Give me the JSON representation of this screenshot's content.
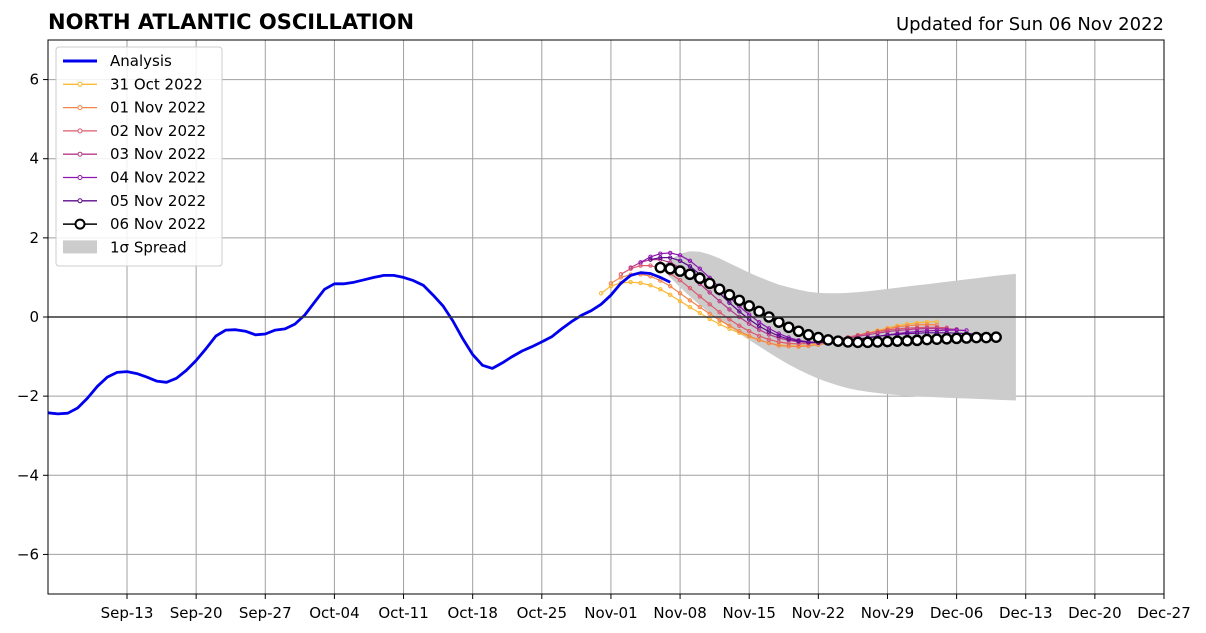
{
  "header": {
    "title": "NORTH ATLANTIC OSCILLATION",
    "updated": "Updated for Sun 06 Nov 2022"
  },
  "chart_data": {
    "type": "line",
    "title": "NORTH ATLANTIC OSCILLATION",
    "xlabel": "",
    "ylabel": "",
    "x_type": "date",
    "xlim": [
      "2022-09-05",
      "2022-12-27"
    ],
    "ylim": [
      -7,
      7
    ],
    "grid": true,
    "legend_position": "top-left",
    "x_ticks": [
      {
        "date": "2022-09-13",
        "label": "Sep-13"
      },
      {
        "date": "2022-09-20",
        "label": "Sep-20"
      },
      {
        "date": "2022-09-27",
        "label": "Sep-27"
      },
      {
        "date": "2022-10-04",
        "label": "Oct-04"
      },
      {
        "date": "2022-10-11",
        "label": "Oct-11"
      },
      {
        "date": "2022-10-18",
        "label": "Oct-18"
      },
      {
        "date": "2022-10-25",
        "label": "Oct-25"
      },
      {
        "date": "2022-11-01",
        "label": "Nov-01"
      },
      {
        "date": "2022-11-08",
        "label": "Nov-08"
      },
      {
        "date": "2022-11-15",
        "label": "Nov-15"
      },
      {
        "date": "2022-11-22",
        "label": "Nov-22"
      },
      {
        "date": "2022-11-29",
        "label": "Nov-29"
      },
      {
        "date": "2022-12-06",
        "label": "Dec-06"
      },
      {
        "date": "2022-12-13",
        "label": "Dec-13"
      },
      {
        "date": "2022-12-20",
        "label": "Dec-20"
      },
      {
        "date": "2022-12-27",
        "label": "Dec-27"
      }
    ],
    "y_ticks": [
      {
        "value": 6,
        "label": "6"
      },
      {
        "value": 4,
        "label": "4"
      },
      {
        "value": 2,
        "label": "2"
      },
      {
        "value": 0,
        "label": "0"
      },
      {
        "value": -2,
        "label": "−2"
      },
      {
        "value": -4,
        "label": "−4"
      },
      {
        "value": -6,
        "label": "−6"
      }
    ],
    "legend": [
      {
        "label": "Analysis",
        "kind": "line",
        "color": "#0000ee"
      },
      {
        "label": "31 Oct 2022",
        "kind": "marker-line",
        "color": "#fbb935"
      },
      {
        "label": "01 Nov 2022",
        "kind": "marker-line",
        "color": "#f3854a"
      },
      {
        "label": "02 Nov 2022",
        "kind": "marker-line",
        "color": "#dd5a6e"
      },
      {
        "label": "03 Nov 2022",
        "kind": "marker-line",
        "color": "#b53a8a"
      },
      {
        "label": "04 Nov 2022",
        "kind": "marker-line",
        "color": "#8f15b0"
      },
      {
        "label": "05 Nov 2022",
        "kind": "marker-line",
        "color": "#5b0b8c"
      },
      {
        "label": "06 Nov 2022",
        "kind": "circle-line",
        "color": "#000000"
      },
      {
        "label": "1σ Spread",
        "kind": "patch",
        "color": "#cccccc"
      }
    ],
    "analysis": {
      "name": "Analysis",
      "color": "#0000ee",
      "start_date": "2022-09-05",
      "values": [
        -2.42,
        -2.45,
        -2.43,
        -2.3,
        -2.05,
        -1.75,
        -1.52,
        -1.4,
        -1.38,
        -1.43,
        -1.52,
        -1.62,
        -1.65,
        -1.55,
        -1.35,
        -1.1,
        -0.8,
        -0.48,
        -0.33,
        -0.32,
        -0.36,
        -0.45,
        -0.43,
        -0.33,
        -0.3,
        -0.18,
        0.05,
        0.38,
        0.7,
        0.84,
        0.84,
        0.88,
        0.94,
        1.0,
        1.05,
        1.05,
        1.0,
        0.92,
        0.8,
        0.55,
        0.28,
        -0.1,
        -0.55,
        -0.95,
        -1.22,
        -1.3,
        -1.16,
        -1.0,
        -0.86,
        -0.75,
        -0.63,
        -0.5,
        -0.3,
        -0.12,
        0.04,
        0.16,
        0.32,
        0.55,
        0.85,
        1.05,
        1.12,
        1.1,
        1.0,
        0.88
      ]
    },
    "forecasts": [
      {
        "name": "31 Oct 2022",
        "color": "#fbb935",
        "start_date": "2022-10-31",
        "values": [
          0.6,
          0.78,
          0.86,
          0.88,
          0.86,
          0.8,
          0.7,
          0.56,
          0.4,
          0.25,
          0.1,
          -0.05,
          -0.18,
          -0.3,
          -0.4,
          -0.5,
          -0.58,
          -0.66,
          -0.7,
          -0.73,
          -0.73,
          -0.72,
          -0.68,
          -0.64,
          -0.58,
          -0.52,
          -0.46,
          -0.4,
          -0.34,
          -0.28,
          -0.22,
          -0.18,
          -0.15,
          -0.13,
          -0.12
        ]
      },
      {
        "name": "01 Nov 2022",
        "color": "#f3854a",
        "start_date": "2022-11-01",
        "values": [
          0.85,
          1.0,
          1.07,
          1.08,
          1.03,
          0.92,
          0.78,
          0.6,
          0.42,
          0.25,
          0.08,
          -0.08,
          -0.22,
          -0.36,
          -0.48,
          -0.58,
          -0.66,
          -0.72,
          -0.74,
          -0.75,
          -0.73,
          -0.7,
          -0.66,
          -0.6,
          -0.54,
          -0.48,
          -0.42,
          -0.36,
          -0.3,
          -0.25,
          -0.22,
          -0.2,
          -0.19,
          -0.2
        ]
      },
      {
        "name": "02 Nov 2022",
        "color": "#dd5a6e",
        "start_date": "2022-11-02",
        "values": [
          1.08,
          1.22,
          1.3,
          1.3,
          1.23,
          1.1,
          0.93,
          0.73,
          0.52,
          0.32,
          0.12,
          -0.06,
          -0.22,
          -0.36,
          -0.48,
          -0.57,
          -0.63,
          -0.67,
          -0.68,
          -0.67,
          -0.65,
          -0.61,
          -0.56,
          -0.51,
          -0.46,
          -0.41,
          -0.37,
          -0.33,
          -0.3,
          -0.28,
          -0.27,
          -0.26,
          -0.26,
          -0.27
        ]
      },
      {
        "name": "03 Nov 2022",
        "color": "#b53a8a",
        "start_date": "2022-11-03",
        "values": [
          1.25,
          1.38,
          1.45,
          1.45,
          1.38,
          1.24,
          1.06,
          0.84,
          0.62,
          0.4,
          0.19,
          0.0,
          -0.17,
          -0.32,
          -0.44,
          -0.53,
          -0.59,
          -0.63,
          -0.64,
          -0.63,
          -0.61,
          -0.58,
          -0.54,
          -0.49,
          -0.45,
          -0.41,
          -0.37,
          -0.34,
          -0.32,
          -0.3,
          -0.29,
          -0.29,
          -0.3,
          -0.31
        ]
      },
      {
        "name": "04 Nov 2022",
        "color": "#8f15b0",
        "start_date": "2022-11-04",
        "values": [
          1.38,
          1.52,
          1.6,
          1.62,
          1.56,
          1.42,
          1.22,
          0.99,
          0.74,
          0.5,
          0.27,
          0.06,
          -0.13,
          -0.29,
          -0.42,
          -0.52,
          -0.59,
          -0.63,
          -0.65,
          -0.65,
          -0.63,
          -0.6,
          -0.57,
          -0.53,
          -0.49,
          -0.45,
          -0.42,
          -0.39,
          -0.37,
          -0.35,
          -0.34,
          -0.33,
          -0.33,
          -0.34
        ]
      },
      {
        "name": "05 Nov 2022",
        "color": "#5b0b8c",
        "start_date": "2022-11-05",
        "values": [
          1.45,
          1.5,
          1.5,
          1.42,
          1.28,
          1.08,
          0.84,
          0.6,
          0.36,
          0.14,
          -0.06,
          -0.23,
          -0.37,
          -0.48,
          -0.56,
          -0.61,
          -0.64,
          -0.65,
          -0.64,
          -0.62,
          -0.59,
          -0.56,
          -0.52,
          -0.49,
          -0.46,
          -0.44,
          -0.42,
          -0.41,
          -0.4,
          -0.4,
          -0.4,
          -0.41,
          -0.42,
          -0.43,
          -0.44
        ]
      },
      {
        "name": "06 Nov 2022",
        "color": "#000000",
        "start_date": "2022-11-06",
        "values": [
          1.25,
          1.22,
          1.16,
          1.08,
          0.98,
          0.85,
          0.7,
          0.56,
          0.42,
          0.28,
          0.14,
          0.0,
          -0.13,
          -0.26,
          -0.36,
          -0.45,
          -0.52,
          -0.58,
          -0.61,
          -0.63,
          -0.64,
          -0.64,
          -0.63,
          -0.62,
          -0.61,
          -0.6,
          -0.59,
          -0.57,
          -0.56,
          -0.55,
          -0.54,
          -0.53,
          -0.52,
          -0.52,
          -0.51
        ]
      }
    ],
    "spread": {
      "name": "1σ Spread",
      "color": "#cccccc",
      "start_date": "2022-11-06",
      "upper": [
        1.25,
        1.45,
        1.6,
        1.66,
        1.65,
        1.58,
        1.48,
        1.36,
        1.24,
        1.12,
        1.01,
        0.91,
        0.82,
        0.75,
        0.69,
        0.64,
        0.61,
        0.6,
        0.6,
        0.61,
        0.63,
        0.65,
        0.68,
        0.71,
        0.74,
        0.77,
        0.8,
        0.83,
        0.86,
        0.89,
        0.92,
        0.95,
        0.98,
        1.01,
        1.04,
        1.07,
        1.09
      ],
      "lower": [
        1.25,
        1.0,
        0.75,
        0.52,
        0.3,
        0.1,
        -0.08,
        -0.25,
        -0.42,
        -0.58,
        -0.74,
        -0.9,
        -1.05,
        -1.2,
        -1.33,
        -1.45,
        -1.56,
        -1.65,
        -1.73,
        -1.8,
        -1.85,
        -1.89,
        -1.92,
        -1.95,
        -1.97,
        -1.99,
        -2.01,
        -2.02,
        -2.03,
        -2.04,
        -2.05,
        -2.06,
        -2.07,
        -2.08,
        -2.09,
        -2.1,
        -2.11
      ]
    }
  }
}
